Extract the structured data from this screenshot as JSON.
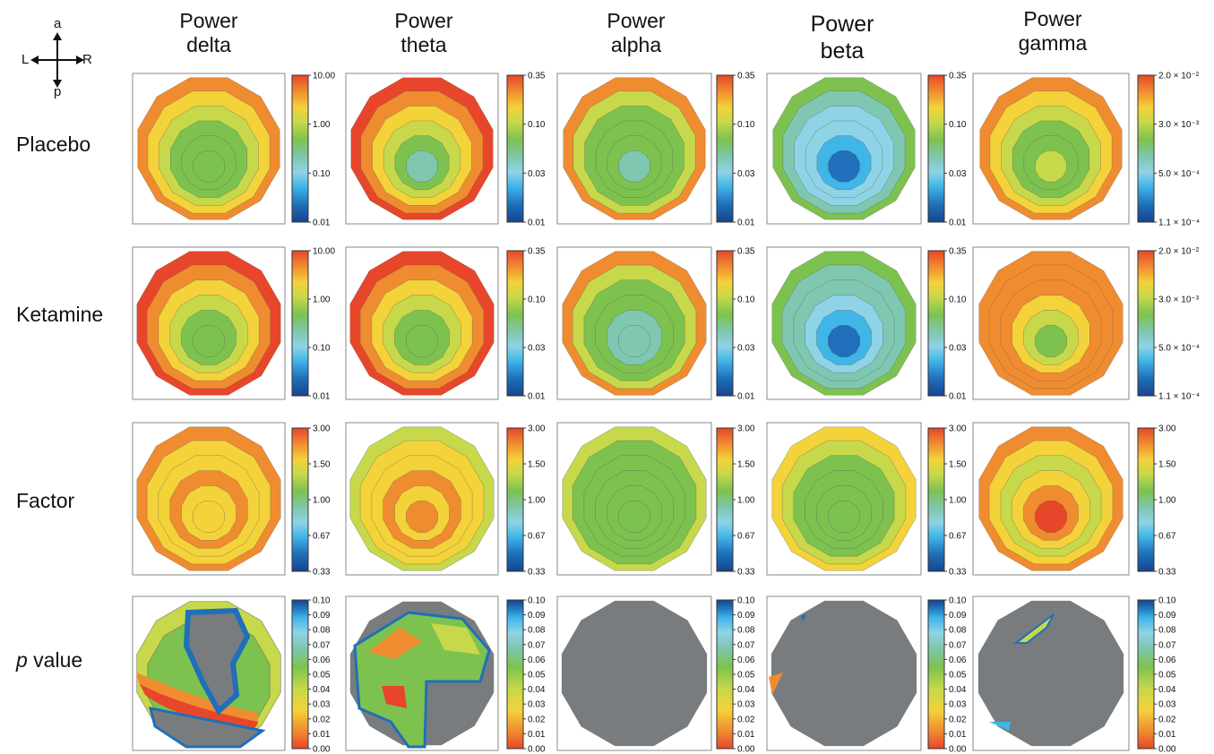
{
  "compass": {
    "anterior": "a",
    "posterior": "p",
    "left": "L",
    "right": "R"
  },
  "columns": [
    {
      "line1": "Power",
      "line2": "delta"
    },
    {
      "line1": "Power",
      "line2": "theta"
    },
    {
      "line1": "Power",
      "line2": "alpha"
    },
    {
      "line1": "Power",
      "line2": "beta"
    },
    {
      "line1": "Power",
      "line2": "gamma"
    }
  ],
  "rows": [
    {
      "label": "Placebo"
    },
    {
      "label": "Ketamine"
    },
    {
      "label": "Factor"
    },
    {
      "label_italic": "p",
      "label_rest": " value"
    }
  ],
  "colorbars": {
    "delta_power": [
      "10.00",
      "1.00",
      "0.10",
      "0.01"
    ],
    "theta_alpha_beta_power": [
      "0.35",
      "0.10",
      "0.03",
      "0.01"
    ],
    "gamma_power": [
      "2.0 × 10⁻²",
      "3.0 × 10⁻³",
      "5.0 × 10⁻⁴",
      "1.1 × 10⁻⁴"
    ],
    "factor": [
      "3.00",
      "1.50",
      "1.00",
      "0.67",
      "0.33"
    ],
    "pvalue": [
      "0.10",
      "0.09",
      "0.08",
      "0.07",
      "0.06",
      "0.05",
      "0.04",
      "0.03",
      "0.02",
      "0.01",
      "0.00"
    ]
  },
  "colors": {
    "red": "#e8462a",
    "orange": "#f08c30",
    "yellow": "#f4d23a",
    "yellowgreen": "#c7d84a",
    "green": "#7dc24f",
    "teal": "#7fc7b0",
    "cyan": "#8fd3e6",
    "lightblue": "#3fb5e8",
    "blue": "#1f6fba",
    "darkblue": "#17448f",
    "masked": "#787c7f"
  }
}
